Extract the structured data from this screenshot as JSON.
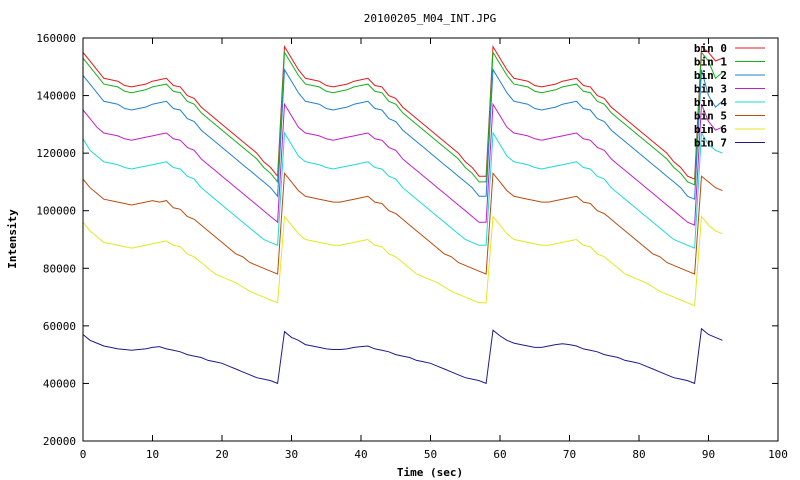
{
  "chart_data": {
    "type": "line",
    "title": "20100205_M04_INT.JPG",
    "xlabel": "Time (sec)",
    "ylabel": "Intensity",
    "xlim": [
      0,
      100
    ],
    "ylim": [
      20000,
      160000
    ],
    "xticks": [
      0,
      10,
      20,
      30,
      40,
      50,
      60,
      70,
      80,
      90,
      100
    ],
    "yticks": [
      20000,
      40000,
      60000,
      80000,
      100000,
      120000,
      140000,
      160000
    ],
    "grid": false,
    "legend_position": "top-right",
    "x": [
      0,
      1,
      2,
      3,
      4,
      5,
      6,
      7,
      8,
      9,
      10,
      11,
      12,
      13,
      14,
      15,
      16,
      17,
      18,
      19,
      20,
      21,
      22,
      23,
      24,
      25,
      26,
      27,
      28,
      29,
      30,
      31,
      32,
      33,
      34,
      35,
      36,
      37,
      38,
      39,
      40,
      41,
      42,
      43,
      44,
      45,
      46,
      47,
      48,
      49,
      50,
      51,
      52,
      53,
      54,
      55,
      56,
      57,
      58,
      59,
      60,
      61,
      62,
      63,
      64,
      65,
      66,
      67,
      68,
      69,
      70,
      71,
      72,
      73,
      74,
      75,
      76,
      77,
      78,
      79,
      80,
      81,
      82,
      83,
      84,
      85,
      86,
      87,
      88,
      89,
      90,
      91,
      92
    ],
    "series": [
      {
        "name": "bin 0",
        "color": "#e41a1c",
        "values": [
          155000,
          152000,
          149000,
          146000,
          145500,
          145000,
          143500,
          143000,
          143500,
          144000,
          145000,
          145500,
          146000,
          143500,
          143000,
          140000,
          139000,
          136000,
          134000,
          132000,
          130000,
          128000,
          126000,
          124000,
          122000,
          120000,
          117000,
          115000,
          112000,
          157000,
          153000,
          149000,
          146000,
          145500,
          145000,
          143500,
          143000,
          143500,
          144000,
          145000,
          145500,
          146000,
          143500,
          143000,
          140000,
          139000,
          136000,
          134000,
          132000,
          130000,
          128000,
          126000,
          124000,
          122000,
          120000,
          117000,
          115000,
          112000,
          112000,
          157000,
          153000,
          149000,
          146000,
          145500,
          145000,
          143500,
          143000,
          143500,
          144000,
          145000,
          145500,
          146000,
          143500,
          143000,
          140000,
          139000,
          136000,
          134000,
          132000,
          130000,
          128000,
          126000,
          124000,
          122000,
          120000,
          117000,
          115000,
          112000,
          111000,
          157000,
          155000,
          152000,
          153000
        ]
      },
      {
        "name": "bin 1",
        "color": "#16b01a",
        "values": [
          153000,
          150000,
          147000,
          144000,
          143500,
          143000,
          141500,
          141000,
          141500,
          142000,
          143000,
          143500,
          144000,
          141500,
          141000,
          138000,
          137000,
          134000,
          132000,
          130000,
          128000,
          126000,
          124000,
          122000,
          120000,
          118000,
          115000,
          113000,
          110000,
          155000,
          151000,
          147000,
          144000,
          143500,
          143000,
          141500,
          141000,
          141500,
          142000,
          143000,
          143500,
          144000,
          141500,
          141000,
          138000,
          137000,
          134000,
          132000,
          130000,
          128000,
          126000,
          124000,
          122000,
          120000,
          118000,
          115000,
          113000,
          110000,
          110000,
          155000,
          151000,
          147000,
          144000,
          143500,
          143000,
          141500,
          141000,
          141500,
          142000,
          143000,
          143500,
          144000,
          141500,
          141000,
          138000,
          137000,
          134000,
          132000,
          130000,
          128000,
          126000,
          124000,
          122000,
          120000,
          118000,
          115000,
          113000,
          110000,
          109000,
          155000,
          152000,
          146000,
          148000
        ]
      },
      {
        "name": "bin 2",
        "color": "#2381cc",
        "values": [
          147000,
          144000,
          141000,
          138000,
          137500,
          137000,
          135500,
          135000,
          135500,
          136000,
          137000,
          137500,
          138000,
          135500,
          135000,
          132000,
          131000,
          128000,
          126000,
          124000,
          122000,
          120000,
          118000,
          116000,
          114000,
          112000,
          110000,
          108000,
          105000,
          149000,
          145000,
          141000,
          138000,
          137500,
          137000,
          135500,
          135000,
          135500,
          136000,
          137000,
          137500,
          138000,
          135500,
          135000,
          132000,
          131000,
          128000,
          126000,
          124000,
          122000,
          120000,
          118000,
          116000,
          114000,
          112000,
          110000,
          108000,
          105000,
          105000,
          149000,
          145000,
          141000,
          138000,
          137500,
          137000,
          135500,
          135000,
          135500,
          136000,
          137000,
          137500,
          138000,
          135500,
          135000,
          132000,
          131000,
          128000,
          126000,
          124000,
          122000,
          120000,
          118000,
          116000,
          114000,
          112000,
          110000,
          108000,
          105000,
          104000,
          149000,
          140000,
          136000,
          138000
        ]
      },
      {
        "name": "bin 3",
        "color": "#c41fc4",
        "values": [
          135000,
          132000,
          129000,
          127000,
          126500,
          126000,
          125000,
          124500,
          125000,
          125500,
          126000,
          126500,
          127000,
          125000,
          124500,
          122000,
          121000,
          118000,
          116000,
          114000,
          112000,
          110000,
          108000,
          106000,
          104000,
          102000,
          100000,
          98000,
          96000,
          137000,
          133000,
          129000,
          127000,
          126500,
          126000,
          125000,
          124500,
          125000,
          125500,
          126000,
          126500,
          127000,
          125000,
          124500,
          122000,
          121000,
          118000,
          116000,
          114000,
          112000,
          110000,
          108000,
          106000,
          104000,
          102000,
          100000,
          98000,
          96000,
          96000,
          137000,
          133000,
          129000,
          127000,
          126500,
          126000,
          125000,
          124500,
          125000,
          125500,
          126000,
          126500,
          127000,
          125000,
          124500,
          122000,
          121000,
          118000,
          116000,
          114000,
          112000,
          110000,
          108000,
          106000,
          104000,
          102000,
          100000,
          98000,
          96000,
          95000,
          137000,
          131000,
          128000,
          129000
        ]
      },
      {
        "name": "bin 4",
        "color": "#1ed9d9",
        "values": [
          125000,
          121000,
          119000,
          117000,
          116500,
          116000,
          115000,
          114500,
          115000,
          115500,
          116000,
          116500,
          117000,
          115000,
          114500,
          112000,
          111000,
          108000,
          106000,
          104000,
          102000,
          100000,
          98000,
          96000,
          94000,
          92000,
          90000,
          89000,
          88000,
          127000,
          123000,
          119000,
          117000,
          116500,
          116000,
          115000,
          114500,
          115000,
          115500,
          116000,
          116500,
          117000,
          115000,
          114500,
          112000,
          111000,
          108000,
          106000,
          104000,
          102000,
          100000,
          98000,
          96000,
          94000,
          92000,
          90000,
          89000,
          88000,
          88000,
          127000,
          123000,
          119000,
          117000,
          116500,
          116000,
          115000,
          114500,
          115000,
          115500,
          116000,
          116500,
          117000,
          115000,
          114500,
          112000,
          111000,
          108000,
          106000,
          104000,
          102000,
          100000,
          98000,
          96000,
          94000,
          92000,
          90000,
          89000,
          88000,
          87000,
          127000,
          123000,
          121000,
          120000
        ]
      },
      {
        "name": "bin 5",
        "color": "#b94c0e",
        "values": [
          111000,
          108000,
          106000,
          104000,
          103500,
          103000,
          102500,
          102000,
          102500,
          103000,
          103500,
          103000,
          103500,
          101000,
          100500,
          98000,
          97000,
          95000,
          93000,
          91000,
          89000,
          87000,
          85000,
          84000,
          82000,
          81000,
          80000,
          79000,
          78000,
          113000,
          110000,
          107000,
          105000,
          104500,
          104000,
          103500,
          103000,
          103000,
          103500,
          104000,
          104500,
          105000,
          103000,
          102500,
          100000,
          99000,
          97000,
          95000,
          93000,
          91000,
          89000,
          87000,
          85000,
          84000,
          82000,
          81000,
          80000,
          79000,
          78000,
          113000,
          110000,
          107000,
          105000,
          104500,
          104000,
          103500,
          103000,
          103000,
          103500,
          104000,
          104500,
          105000,
          103000,
          102500,
          100000,
          99000,
          97000,
          95000,
          93000,
          91000,
          89000,
          87000,
          85000,
          84000,
          82000,
          81000,
          80000,
          79000,
          78000,
          112000,
          110000,
          108000,
          107000
        ]
      },
      {
        "name": "bin 6",
        "color": "#e6e620",
        "values": [
          96000,
          93000,
          91000,
          89000,
          88500,
          88000,
          87500,
          87000,
          87500,
          88000,
          88500,
          89000,
          89500,
          88000,
          87500,
          85000,
          84000,
          82000,
          80000,
          78000,
          77000,
          76000,
          75000,
          73500,
          72000,
          71000,
          70000,
          69000,
          68000,
          98000,
          95000,
          92000,
          90000,
          89500,
          89000,
          88500,
          88000,
          88000,
          88500,
          89000,
          89500,
          90000,
          88000,
          87500,
          85000,
          84000,
          82000,
          80000,
          78000,
          77000,
          76000,
          75000,
          73500,
          72000,
          71000,
          70000,
          69000,
          68000,
          68000,
          98000,
          95000,
          92000,
          90000,
          89500,
          89000,
          88500,
          88000,
          88000,
          88500,
          89000,
          89500,
          90000,
          88000,
          87500,
          85000,
          84000,
          82000,
          80000,
          78000,
          77000,
          76000,
          75000,
          73500,
          72000,
          71000,
          70000,
          69000,
          68000,
          67000,
          98000,
          95000,
          93000,
          92000
        ]
      },
      {
        "name": "bin 7",
        "color": "#1c1c8a",
        "values": [
          57000,
          55000,
          54000,
          53000,
          52500,
          52000,
          51800,
          51500,
          51800,
          52000,
          52500,
          52800,
          52000,
          51500,
          51000,
          50000,
          49500,
          49000,
          48000,
          47500,
          47000,
          46000,
          45000,
          44000,
          43000,
          42000,
          41500,
          41000,
          40000,
          58000,
          56000,
          55000,
          53500,
          53000,
          52500,
          52000,
          51800,
          51800,
          52000,
          52500,
          52800,
          53000,
          52000,
          51500,
          51000,
          50000,
          49500,
          49000,
          48000,
          47500,
          47000,
          46000,
          45000,
          44000,
          43000,
          42000,
          41500,
          41000,
          40000,
          58500,
          56500,
          55000,
          54000,
          53500,
          53000,
          52500,
          52500,
          53000,
          53500,
          53800,
          53500,
          53000,
          52000,
          51500,
          51000,
          50000,
          49500,
          49000,
          48000,
          47500,
          47000,
          46000,
          45000,
          44000,
          43000,
          42000,
          41500,
          41000,
          40000,
          59000,
          57000,
          56000,
          55000
        ]
      }
    ]
  }
}
